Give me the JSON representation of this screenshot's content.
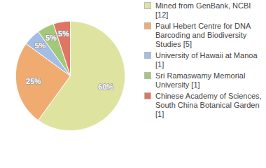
{
  "chart_data": {
    "type": "pie",
    "categories": [
      "Mined from GenBank, NCBI [12]",
      "Paul Hebert Centre for DNA Barcoding and Biodiversity Studies [5]",
      "University of Hawaii at Manoa [1]",
      "Sri Ramaswamy Memorial University [1]",
      "Chinese Academy of Sciences, South China Botanical Garden [1]"
    ],
    "values": [
      60,
      25,
      5,
      5,
      5
    ],
    "value_labels": [
      "60%",
      "25%",
      "5%",
      "5%",
      "5%"
    ],
    "colors": [
      "#dfe3a0",
      "#f0ac70",
      "#a4bde6",
      "#a3c87a",
      "#e07563"
    ],
    "data_labels": true,
    "legend": "right"
  }
}
